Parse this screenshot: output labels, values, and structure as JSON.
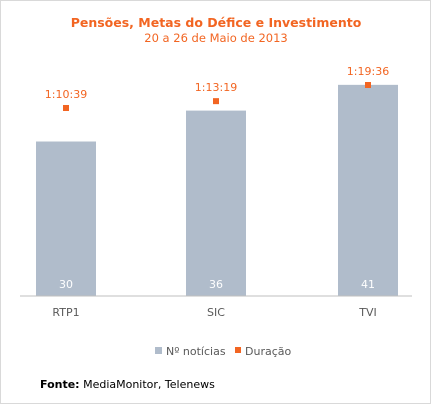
{
  "chart_data": {
    "type": "bar",
    "title": "Pensões, Metas do Défice e Investimento",
    "subtitle": "20 a 26 de Maio de 2013",
    "categories": [
      "RTP1",
      "SIC",
      "TVI"
    ],
    "series": [
      {
        "name": "Nº notícias",
        "kind": "bar",
        "values": [
          30,
          36,
          41
        ],
        "color": "#b0bccb"
      },
      {
        "name": "Duração",
        "kind": "marker",
        "values": [
          "1:10:39",
          "1:13:19",
          "1:19:36"
        ],
        "color": "#f26522"
      }
    ],
    "legend": "bottom",
    "grid": false
  },
  "source": {
    "label": "Fonte:",
    "text": " MediaMonitor, Telenews"
  }
}
